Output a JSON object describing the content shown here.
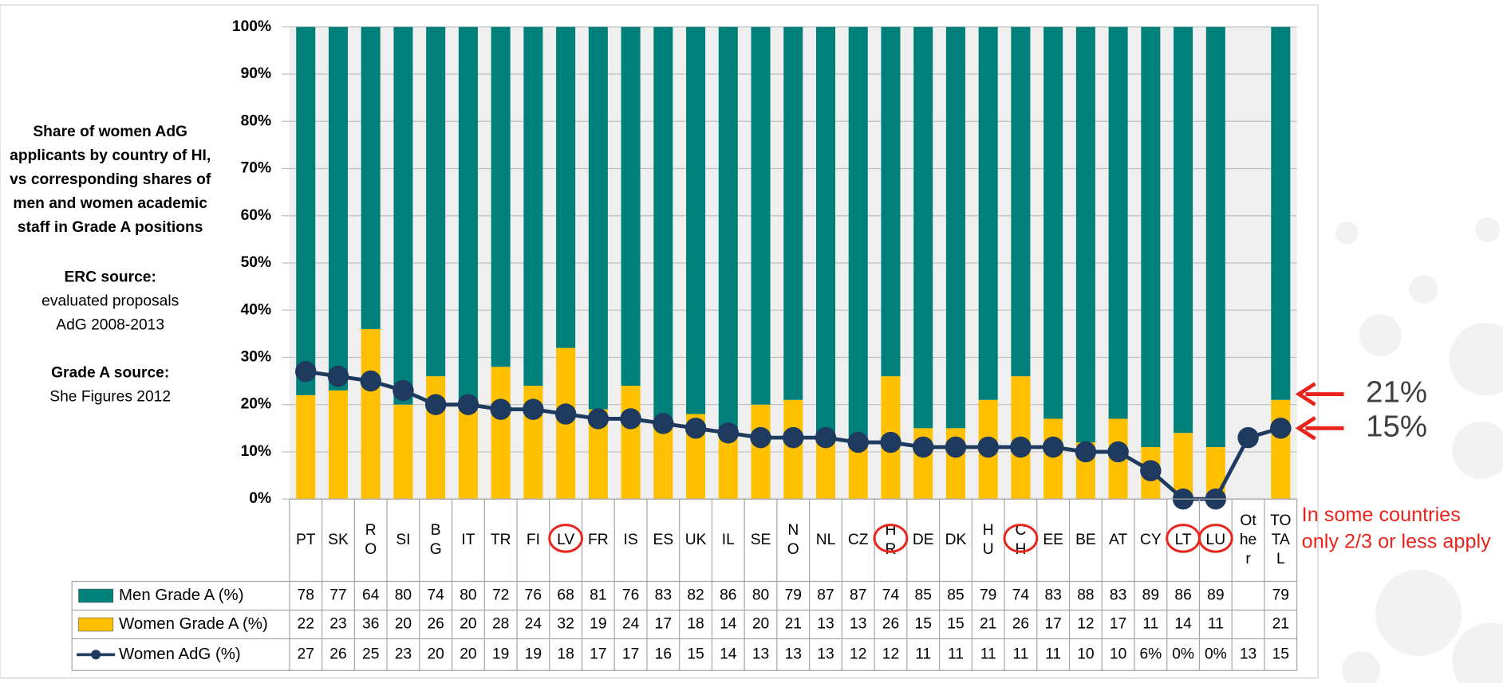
{
  "chart_data": {
    "type": "bar",
    "stacked": true,
    "title": "Share of women AdG applicants by country of HI, vs corresponding shares of men and women academic staff in Grade A positions",
    "notes": [
      {
        "heading": "ERC source:",
        "text": "evaluated proposals AdG 2008-2013"
      },
      {
        "heading": "Grade A source:",
        "text": "She Figures 2012"
      }
    ],
    "categories": [
      "PT",
      "SK",
      "RO",
      "SI",
      "BG",
      "IT",
      "TR",
      "FI",
      "LV",
      "FR",
      "IS",
      "ES",
      "UK",
      "IL",
      "SE",
      "NO",
      "NL",
      "CZ",
      "HR",
      "DE",
      "DK",
      "HU",
      "CH",
      "EE",
      "BE",
      "AT",
      "CY",
      "LT",
      "LU",
      "Other",
      "TOTAL"
    ],
    "circled": [
      8,
      18,
      22,
      27,
      28
    ],
    "series": [
      {
        "name": "Men Grade A (%)",
        "type": "bar",
        "color": "#00807a",
        "values": [
          78,
          77,
          64,
          80,
          74,
          80,
          72,
          76,
          68,
          81,
          76,
          83,
          82,
          86,
          80,
          79,
          87,
          87,
          74,
          85,
          85,
          79,
          74,
          83,
          88,
          83,
          89,
          86,
          89,
          null,
          79
        ]
      },
      {
        "name": "Women Grade A (%)",
        "type": "bar",
        "color": "#ffc000",
        "values": [
          22,
          23,
          36,
          20,
          26,
          20,
          28,
          24,
          32,
          19,
          24,
          17,
          18,
          14,
          20,
          21,
          13,
          13,
          26,
          15,
          15,
          21,
          26,
          17,
          12,
          17,
          11,
          14,
          11,
          null,
          21
        ]
      },
      {
        "name": "Women AdG (%)",
        "type": "line",
        "color": "#1f3a5f",
        "values": [
          27,
          26,
          25,
          23,
          20,
          20,
          19,
          19,
          18,
          17,
          17,
          16,
          15,
          14,
          13,
          13,
          13,
          12,
          12,
          11,
          11,
          11,
          11,
          11,
          10,
          10,
          6,
          0,
          0,
          13,
          15
        ],
        "value_labels": [
          "27",
          "26",
          "25",
          "23",
          "20",
          "20",
          "19",
          "19",
          "18",
          "17",
          "17",
          "16",
          "15",
          "14",
          "13",
          "13",
          "13",
          "12",
          "12",
          "11",
          "11",
          "11",
          "11",
          "11",
          "10",
          "10",
          "6%",
          "0%",
          "0%",
          "13",
          "15"
        ]
      }
    ],
    "ylim": [
      0,
      100
    ],
    "yticks": [
      {
        "value": 0,
        "label": "0%"
      },
      {
        "value": 10,
        "label": "10%"
      },
      {
        "value": 20,
        "label": "20%"
      },
      {
        "value": 30,
        "label": "30%"
      },
      {
        "value": 40,
        "label": "40%"
      },
      {
        "value": 50,
        "label": "50%"
      },
      {
        "value": 60,
        "label": "60%"
      },
      {
        "value": 70,
        "label": "70%"
      },
      {
        "value": 80,
        "label": "80%"
      },
      {
        "value": 90,
        "label": "90%"
      },
      {
        "value": 100,
        "label": "100%"
      }
    ],
    "grid": true,
    "annotations": [
      {
        "text": "21%",
        "value": 21
      },
      {
        "text": "15%",
        "value": 15
      },
      {
        "text": "In some countries only 2/3 or less apply"
      }
    ]
  }
}
